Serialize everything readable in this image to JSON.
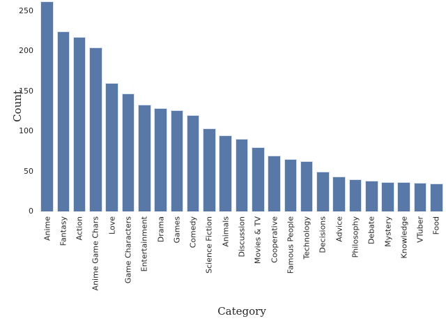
{
  "chart_data": {
    "type": "bar",
    "title": "",
    "xlabel": "Category",
    "ylabel": "Count",
    "categories": [
      "Anime",
      "Fantasy",
      "Action",
      "Anime Game Chars",
      "Love",
      "Game Characters",
      "Entertainment",
      "Drama",
      "Games",
      "Comedy",
      "Science Fiction",
      "Animals",
      "Discussion",
      "Movies & TV",
      "Cooperative",
      "Famous People",
      "Technology",
      "Decisions",
      "Advice",
      "Philosophy",
      "Debate",
      "Mystery",
      "Knowledge",
      "VTuber",
      "Food"
    ],
    "values": [
      262,
      225,
      218,
      205,
      160,
      147,
      133,
      129,
      126,
      120,
      104,
      95,
      91,
      80,
      70,
      65,
      63,
      50,
      44,
      40,
      38,
      37,
      37,
      36,
      35
    ],
    "yticks": [
      0,
      50,
      100,
      150,
      200,
      250
    ],
    "ylim": [
      0,
      264
    ],
    "x_tick_rotation_deg": 90,
    "grid": false,
    "legend": null,
    "colors": {
      "bar_fill": "#5878a8",
      "bar_edge": "#d9e1ee",
      "text": "#262626",
      "background": "#ffffff"
    }
  }
}
